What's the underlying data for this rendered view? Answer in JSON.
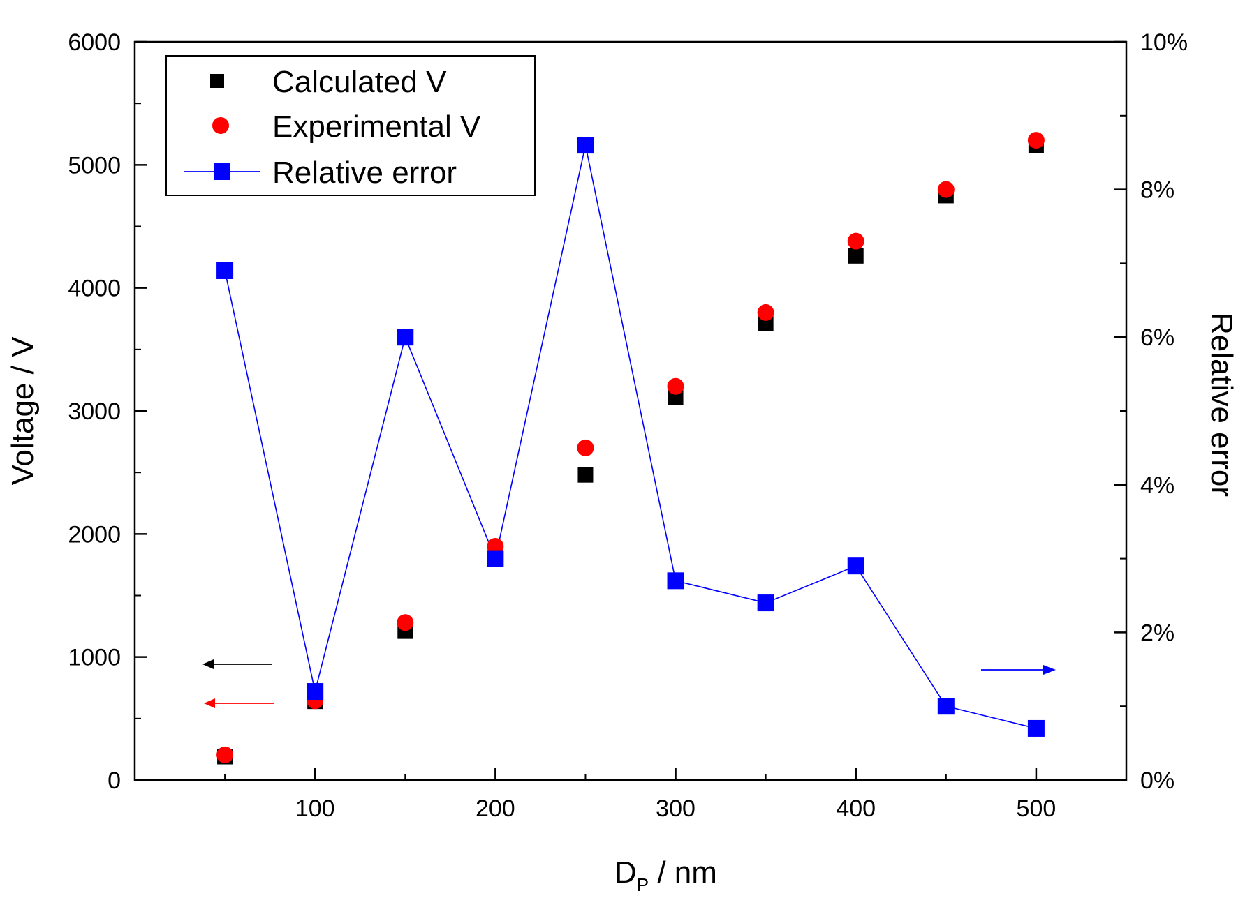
{
  "chart_data": {
    "type": "scatter",
    "x_label_main": "D",
    "x_label_sub": "P",
    "x_label_unit": " / nm",
    "ylabel_left": "Voltage / V",
    "ylabel_right": "Relative error",
    "xlim": [
      0,
      550
    ],
    "ylim_left": [
      0,
      6000
    ],
    "ylim_right": [
      0,
      10
    ],
    "x_ticks": [
      100,
      200,
      300,
      400,
      500
    ],
    "x_tick_labels": [
      "100",
      "200",
      "300",
      "400",
      "500"
    ],
    "y_left_ticks": [
      0,
      1000,
      2000,
      3000,
      4000,
      5000,
      6000
    ],
    "y_left_tick_labels": [
      "0",
      "1000",
      "2000",
      "3000",
      "4000",
      "5000",
      "6000"
    ],
    "y_right_ticks": [
      0,
      2,
      4,
      6,
      8,
      10
    ],
    "y_right_tick_labels": [
      "0%",
      "2%",
      "4%",
      "6%",
      "8%",
      "10%"
    ],
    "x": [
      50,
      100,
      150,
      200,
      250,
      300,
      350,
      400,
      450,
      500
    ],
    "series": [
      {
        "name": "Calculated V",
        "axis": "left",
        "marker": "square",
        "color": "#000000",
        "line": false,
        "values": [
          190,
          640,
          1210,
          1850,
          2480,
          3110,
          3710,
          4260,
          4750,
          5160
        ]
      },
      {
        "name": "Experimental V",
        "axis": "left",
        "marker": "circle",
        "color": "#ff0000",
        "line": false,
        "values": [
          205,
          645,
          1280,
          1900,
          2700,
          3200,
          3800,
          4380,
          4800,
          5200
        ]
      },
      {
        "name": "Relative error",
        "axis": "right",
        "marker": "square",
        "color": "#0000ff",
        "line": true,
        "unit": "%",
        "values": [
          6.9,
          1.2,
          6.0,
          3.0,
          8.6,
          2.7,
          2.4,
          2.9,
          1.0,
          0.7
        ]
      }
    ],
    "annotations": [
      {
        "type": "arrow",
        "direction": "left",
        "color": "#000000",
        "meaning": "Calculated V uses left axis"
      },
      {
        "type": "arrow",
        "direction": "left",
        "color": "#ff0000",
        "meaning": "Experimental V uses left axis"
      },
      {
        "type": "arrow",
        "direction": "right",
        "color": "#0000ff",
        "meaning": "Relative error uses right axis"
      }
    ],
    "legend_position": "top-left",
    "grid": false
  }
}
